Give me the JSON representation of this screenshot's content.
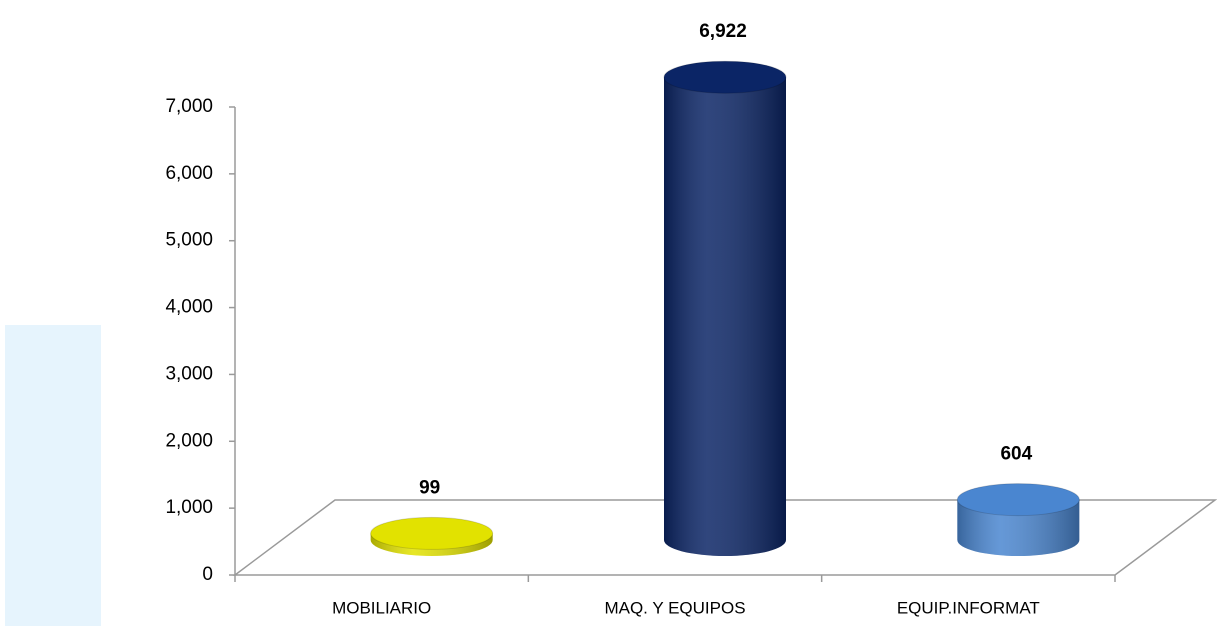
{
  "chart_data": {
    "type": "cylinder",
    "categories": [
      "MOBILIARIO",
      "MAQ. Y EQUIPOS",
      "EQUIP.INFORMAT"
    ],
    "values": [
      99,
      6922,
      604
    ],
    "value_labels": [
      "99",
      "6,922",
      "604"
    ],
    "colors": [
      "#e2e200",
      "#0b2566",
      "#4a86d0"
    ],
    "ylim": [
      0,
      7000
    ],
    "yticks": [
      0,
      {
        "value": 1000,
        "label": "1,000"
      },
      {
        "value": 2000,
        "label": "2,000"
      },
      {
        "value": 3000,
        "label": "3,000"
      },
      {
        "value": 4000,
        "label": "4,000"
      },
      {
        "value": 5000,
        "label": "5,000"
      },
      {
        "value": 6000,
        "label": "6,000"
      },
      {
        "value": 7000,
        "label": "7,000"
      }
    ]
  }
}
